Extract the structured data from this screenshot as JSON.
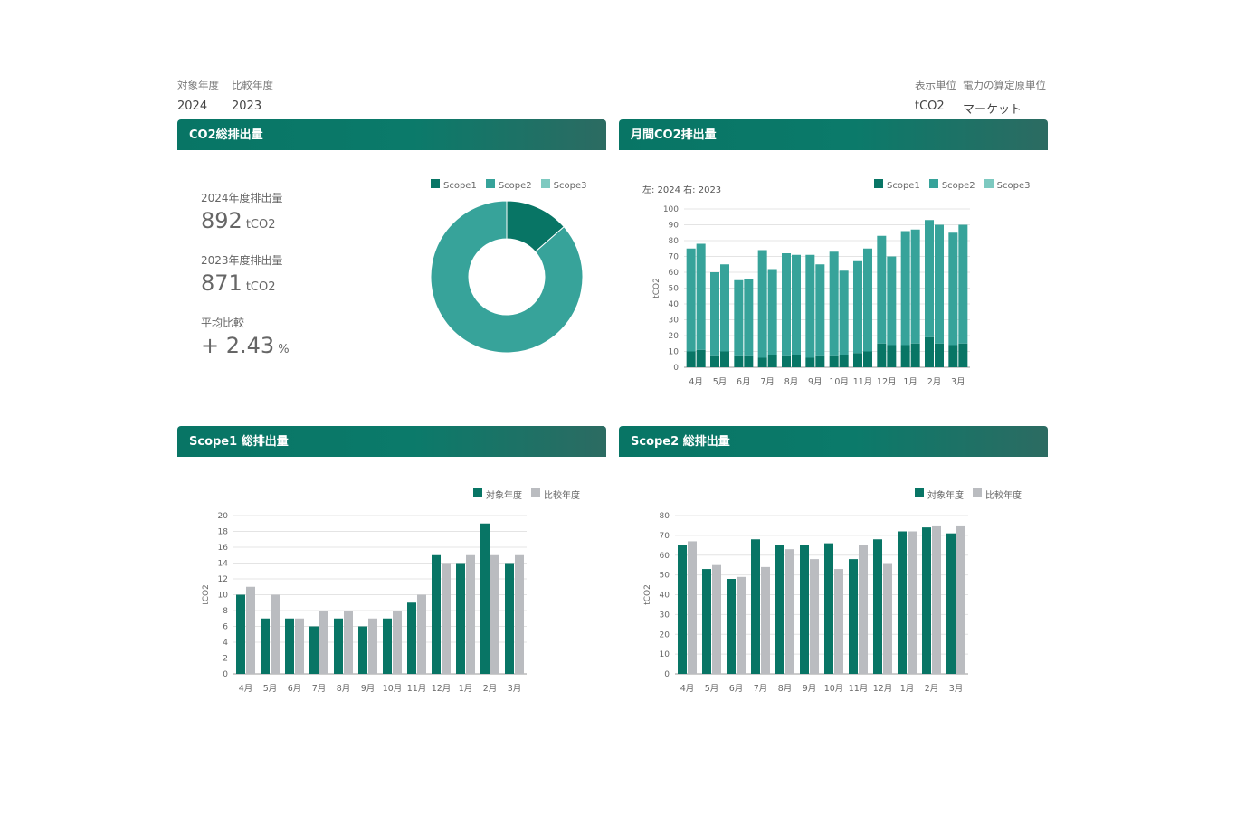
{
  "filters": {
    "target_year_label": "対象年度",
    "target_year_value": "2024",
    "compare_year_label": "比較年度",
    "compare_year_value": "2023",
    "unit_label": "表示単位",
    "unit_value": "tCO2",
    "power_factor_label": "電力の算定原単位",
    "power_factor_value": "マーケット"
  },
  "colors": {
    "scope1": "#087565",
    "scope2": "#37a39a",
    "scope3": "#7dc9c0",
    "compare": "#babcc0",
    "header": "#087565"
  },
  "cards": {
    "total": {
      "title": "CO2総排出量",
      "stats": [
        {
          "label": "2024年度排出量",
          "value": "892",
          "unit": "tCO2"
        },
        {
          "label": "2023年度排出量",
          "value": "871",
          "unit": "tCO2"
        },
        {
          "label": "平均比較",
          "value": "+ 2.43",
          "unit": "%"
        }
      ],
      "legend": [
        "Scope1",
        "Scope2",
        "Scope3"
      ]
    },
    "monthly": {
      "title": "月間CO2排出量",
      "note": "左: 2024   右: 2023",
      "legend": [
        "Scope1",
        "Scope2",
        "Scope3"
      ]
    },
    "scope1": {
      "title": "Scope1 総排出量",
      "legend": [
        "対象年度",
        "比較年度"
      ]
    },
    "scope2": {
      "title": "Scope2 総排出量",
      "legend": [
        "対象年度",
        "比較年度"
      ]
    }
  },
  "chart_data": [
    {
      "type": "pie",
      "title": "CO2総排出量",
      "labels": [
        "Scope1",
        "Scope2",
        "Scope3"
      ],
      "values": [
        121,
        771,
        0
      ]
    },
    {
      "type": "bar",
      "title": "月間CO2排出量",
      "categories": [
        "4月",
        "5月",
        "6月",
        "7月",
        "8月",
        "9月",
        "10月",
        "11月",
        "12月",
        "1月",
        "2月",
        "3月"
      ],
      "ylabel": "tCO2",
      "ylim": [
        0,
        100
      ],
      "yticks": [
        0,
        10,
        20,
        30,
        40,
        50,
        60,
        70,
        80,
        90,
        100
      ],
      "series": [
        {
          "name": "Scope1",
          "year": "2024",
          "values": [
            10,
            7,
            7,
            6,
            7,
            6,
            7,
            9,
            15,
            14,
            19,
            14
          ]
        },
        {
          "name": "Scope2",
          "year": "2024",
          "values": [
            65,
            53,
            48,
            68,
            65,
            65,
            66,
            58,
            68,
            72,
            74,
            71
          ]
        },
        {
          "name": "Scope1",
          "year": "2023",
          "values": [
            11,
            10,
            7,
            8,
            8,
            7,
            8,
            10,
            14,
            15,
            15,
            15
          ]
        },
        {
          "name": "Scope2",
          "year": "2023",
          "values": [
            67,
            55,
            49,
            54,
            63,
            58,
            53,
            65,
            56,
            72,
            75,
            75
          ]
        }
      ]
    },
    {
      "type": "bar",
      "title": "Scope1 総排出量",
      "categories": [
        "4月",
        "5月",
        "6月",
        "7月",
        "8月",
        "9月",
        "10月",
        "11月",
        "12月",
        "1月",
        "2月",
        "3月"
      ],
      "ylabel": "tCO2",
      "ylim": [
        0,
        20
      ],
      "yticks": [
        0,
        2,
        4,
        6,
        8,
        10,
        12,
        14,
        16,
        18,
        20
      ],
      "series": [
        {
          "name": "対象年度",
          "values": [
            10,
            7,
            7,
            6,
            7,
            6,
            7,
            9,
            15,
            14,
            19,
            14
          ]
        },
        {
          "name": "比較年度",
          "values": [
            11,
            10,
            7,
            8,
            8,
            7,
            8,
            10,
            14,
            15,
            15,
            15
          ]
        }
      ]
    },
    {
      "type": "bar",
      "title": "Scope2 総排出量",
      "categories": [
        "4月",
        "5月",
        "6月",
        "7月",
        "8月",
        "9月",
        "10月",
        "11月",
        "12月",
        "1月",
        "2月",
        "3月"
      ],
      "ylabel": "tCO2",
      "ylim": [
        0,
        80
      ],
      "yticks": [
        0,
        10,
        20,
        30,
        40,
        50,
        60,
        70,
        80
      ],
      "series": [
        {
          "name": "対象年度",
          "values": [
            65,
            53,
            48,
            68,
            65,
            65,
            66,
            58,
            68,
            72,
            74,
            71
          ]
        },
        {
          "name": "比較年度",
          "values": [
            67,
            55,
            49,
            54,
            63,
            58,
            53,
            65,
            56,
            72,
            75,
            75
          ]
        }
      ]
    }
  ]
}
